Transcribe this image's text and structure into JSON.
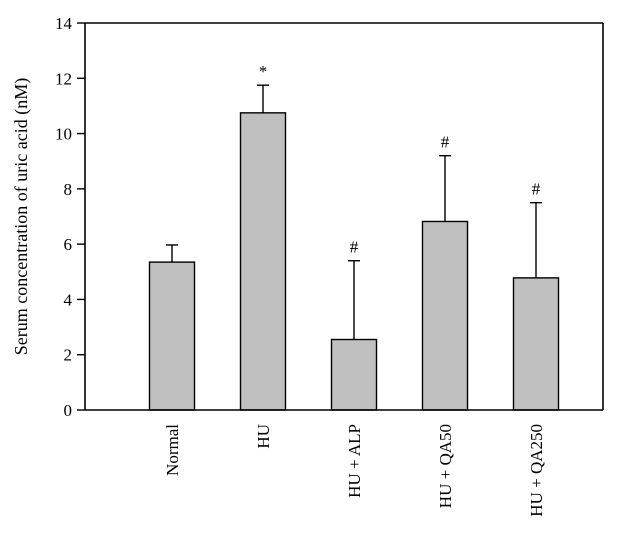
{
  "chart_data": {
    "type": "bar",
    "title": "",
    "xlabel": "",
    "ylabel": "Serum concentration of uric acid (nM)",
    "ylim": [
      0,
      14
    ],
    "yticks": [
      0,
      2,
      4,
      6,
      8,
      10,
      12,
      14
    ],
    "grid": false,
    "categories": [
      "Normal",
      "HU",
      "HU + ALP",
      "HU + QA50",
      "HU + QA250"
    ],
    "values": [
      5.35,
      10.75,
      2.55,
      6.82,
      4.78
    ],
    "error": [
      0.62,
      1.0,
      2.85,
      2.38,
      2.72
    ],
    "annotations": [
      "",
      "*",
      "#",
      "#",
      "#"
    ]
  },
  "colors": {
    "bar_fill": "#c0c0c0",
    "stroke": "#000000"
  }
}
